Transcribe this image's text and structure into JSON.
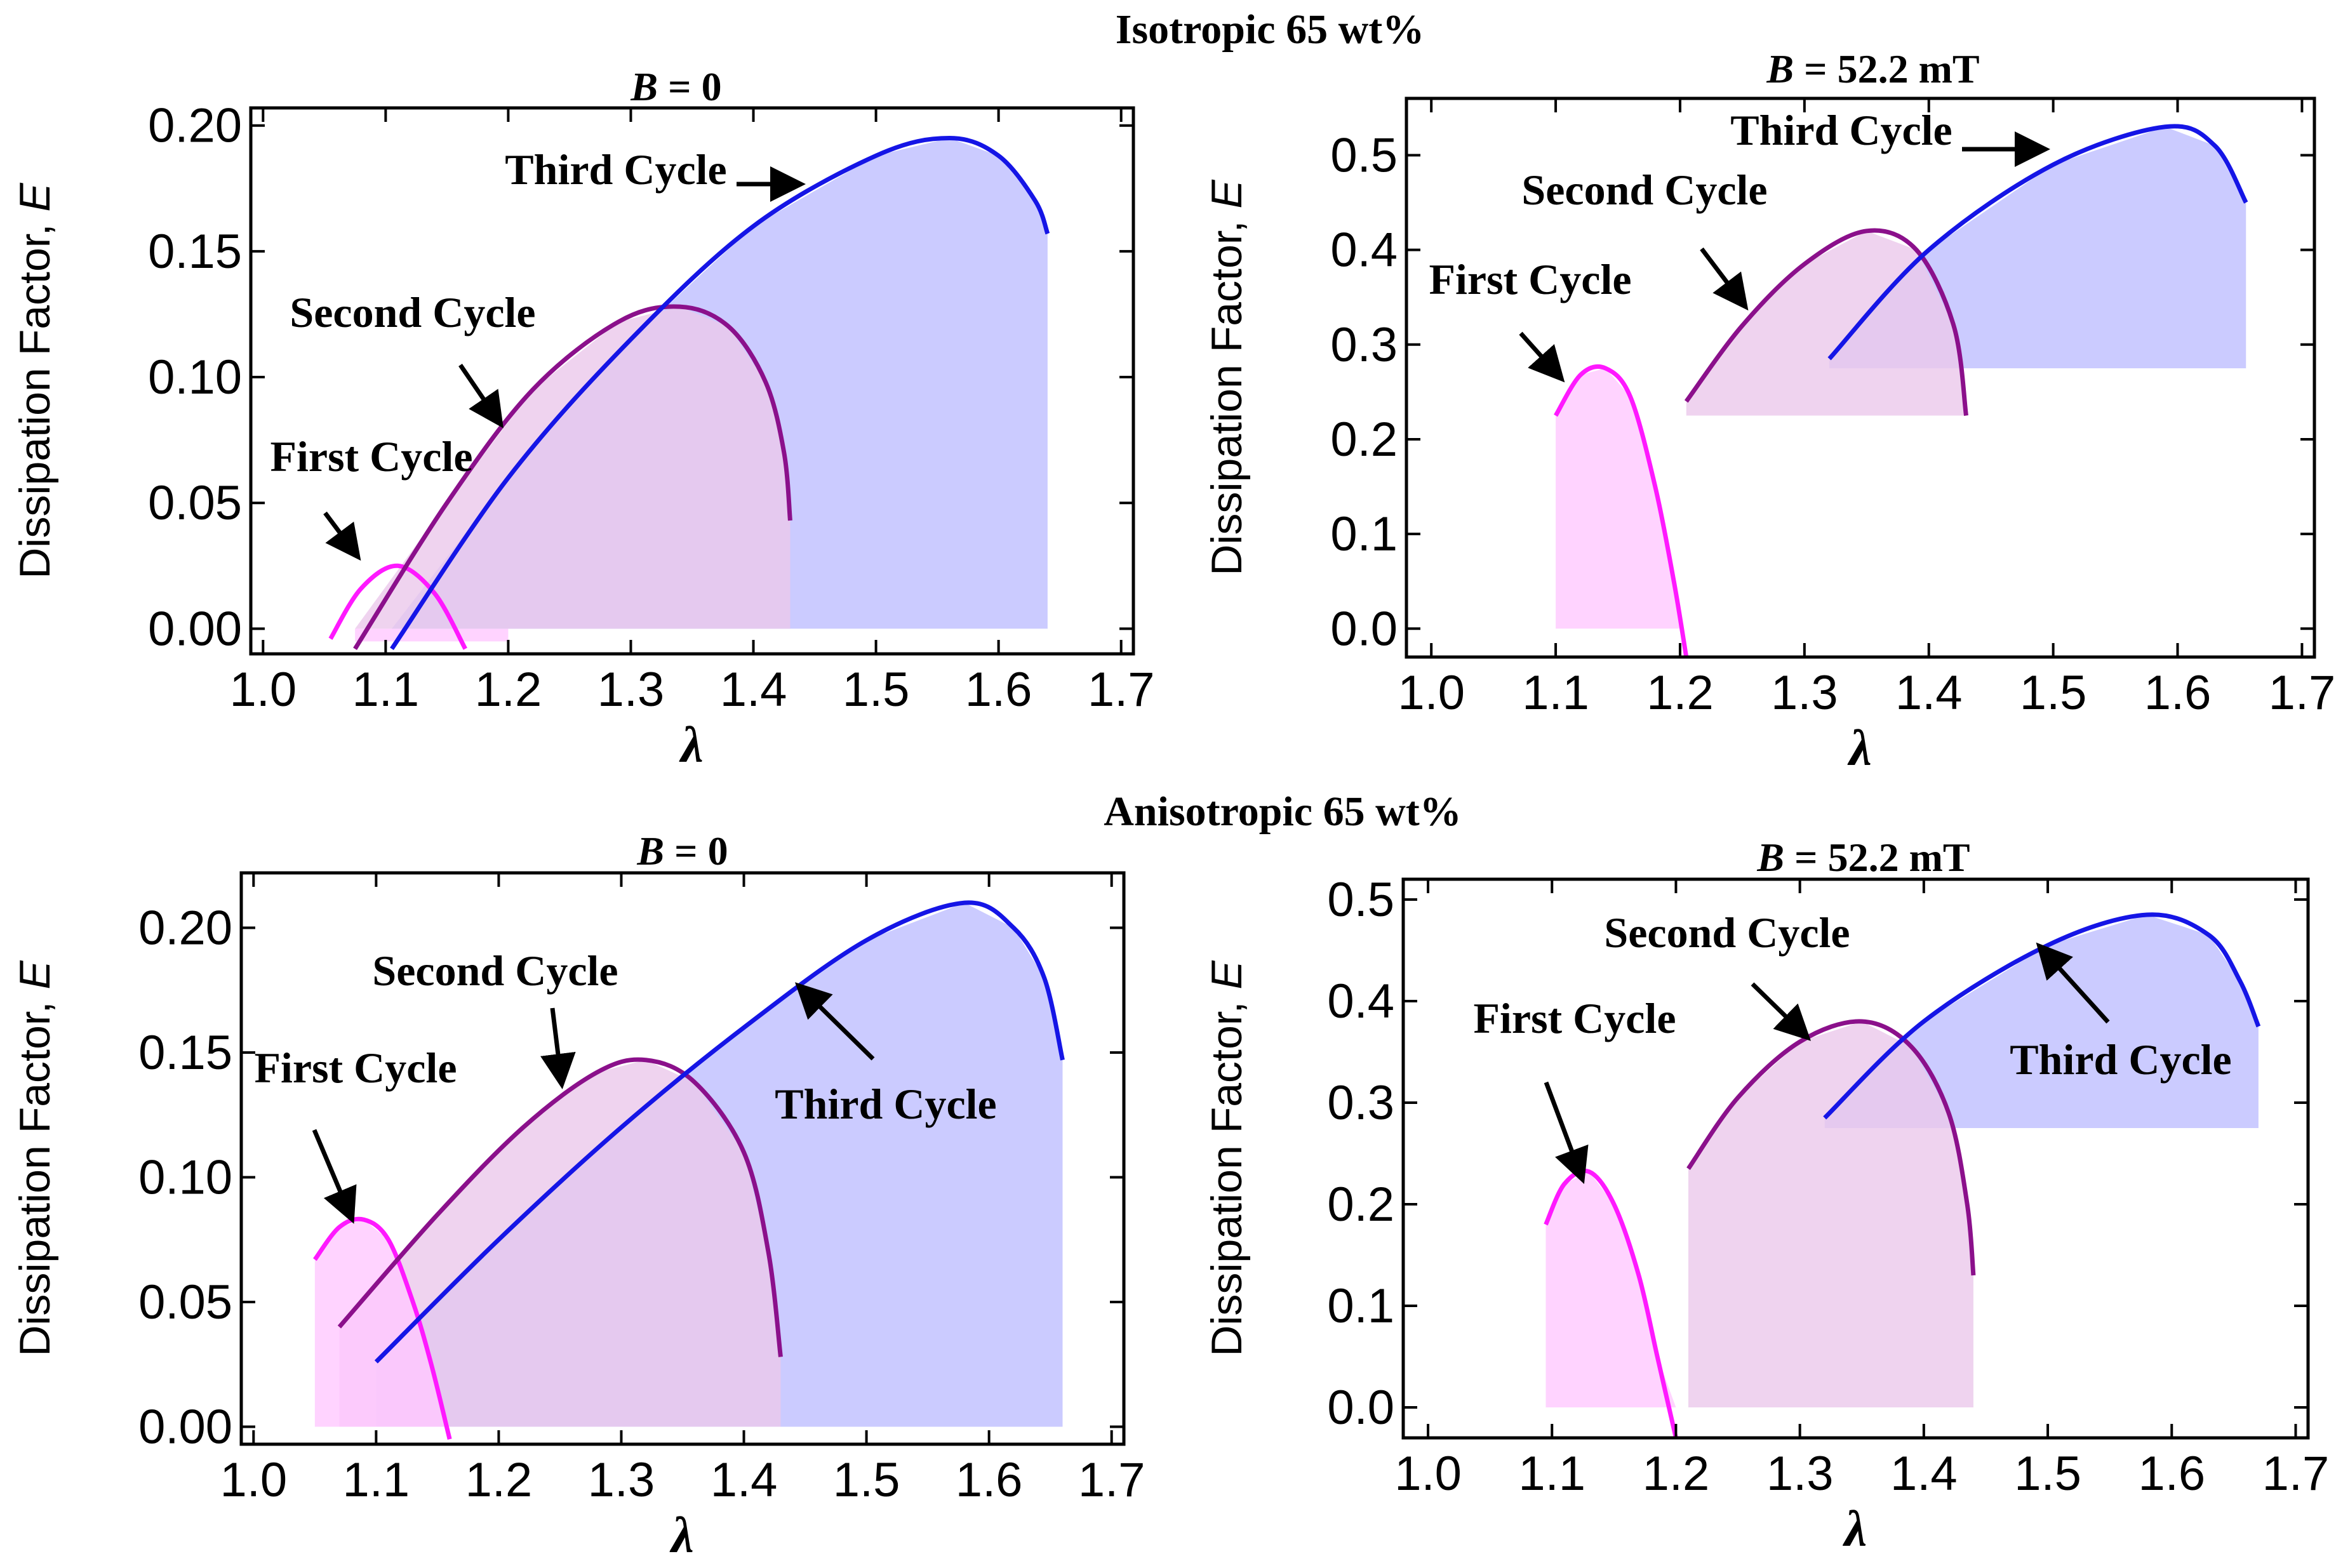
{
  "figure": {
    "row_titles": [
      "Isotropic 65 wt%",
      "Anisotropic 65 wt%"
    ]
  },
  "colors": {
    "first": "#ff19ff",
    "second": "#8b108b",
    "third": "#1515e6",
    "first_fill": "#ffc8ff",
    "second_fill": "#ebc8eb",
    "third_fill": "#c8c8ff",
    "overlap_fill": "#c8a0e6",
    "overlap_fill2": "#ff96ff"
  },
  "chart_data": [
    {
      "id": "iso-b0",
      "type": "area",
      "title_var": "B",
      "title_rest": " = 0",
      "xlabel": "λ",
      "ylabel": "Dissipation Factor, ",
      "ylabel_var": "E",
      "xlim": [
        0.99,
        1.71
      ],
      "ylim": [
        -0.01,
        0.207
      ],
      "xticks": [
        1.0,
        1.1,
        1.2,
        1.3,
        1.4,
        1.5,
        1.6,
        1.7
      ],
      "xtick_labels": [
        "1.0",
        "1.1",
        "1.2",
        "1.3",
        "1.4",
        "1.5",
        "1.6",
        "1.7"
      ],
      "yticks": [
        0.0,
        0.05,
        0.1,
        0.15,
        0.2
      ],
      "ytick_labels": [
        "0.00",
        "0.05",
        "0.10",
        "0.15",
        "0.20"
      ],
      "series": [
        {
          "name": "First Cycle",
          "key": "first",
          "x": [
            1.055,
            1.08,
            1.11,
            1.14,
            1.165
          ],
          "y": [
            -0.004,
            0.016,
            0.025,
            0.014,
            -0.008
          ],
          "fill_x": [
            1.075,
            1.2
          ],
          "fill_base": 0.0,
          "fill_top": [
            0.0,
            0.0
          ]
        },
        {
          "name": "Second Cycle",
          "key": "second",
          "x": [
            1.075,
            1.15,
            1.22,
            1.29,
            1.34,
            1.38,
            1.41,
            1.425,
            1.43
          ],
          "y": [
            -0.008,
            0.05,
            0.095,
            0.122,
            0.128,
            0.12,
            0.098,
            0.07,
            0.043
          ],
          "fill_x": [
            1.075,
            1.43
          ],
          "fill_base": 0.0
        },
        {
          "name": "Third Cycle",
          "key": "third",
          "x": [
            1.105,
            1.2,
            1.3,
            1.4,
            1.5,
            1.56,
            1.6,
            1.63,
            1.64
          ],
          "y": [
            -0.008,
            0.06,
            0.115,
            0.16,
            0.188,
            0.195,
            0.188,
            0.17,
            0.157
          ],
          "fill_x": [
            1.105,
            1.64
          ],
          "fill_base": 0.0
        }
      ],
      "annotations": [
        {
          "text": "Third Cycle",
          "arrow_to": [
            1.44,
            0.18
          ]
        },
        {
          "text": "Second Cycle",
          "arrow_to": [
            1.25,
            0.085
          ]
        },
        {
          "text": "First Cycle",
          "arrow_to": [
            1.085,
            0.025
          ]
        }
      ]
    },
    {
      "id": "iso-b52",
      "type": "area",
      "title_var": "B",
      "title_rest": " = 52.2 mT",
      "xlabel": "λ",
      "ylabel": "Dissipation Factor, ",
      "ylabel_var": "E",
      "xlim": [
        0.98,
        1.71
      ],
      "ylim": [
        -0.03,
        0.56
      ],
      "xticks": [
        1.0,
        1.1,
        1.2,
        1.3,
        1.4,
        1.5,
        1.6,
        1.7
      ],
      "xtick_labels": [
        "1.0",
        "1.1",
        "1.2",
        "1.3",
        "1.4",
        "1.5",
        "1.6",
        "1.7"
      ],
      "yticks": [
        0.0,
        0.1,
        0.2,
        0.3,
        0.4,
        0.5
      ],
      "ytick_labels": [
        "0.0",
        "0.1",
        "0.2",
        "0.3",
        "0.4",
        "0.5"
      ],
      "series": [
        {
          "name": "First Cycle",
          "key": "first",
          "x": [
            1.1,
            1.12,
            1.14,
            1.16,
            1.18,
            1.195,
            1.205
          ],
          "y": [
            0.225,
            0.268,
            0.275,
            0.245,
            0.15,
            0.05,
            -0.03
          ],
          "fill_x": [
            1.1,
            1.2
          ],
          "fill_base": 0.0
        },
        {
          "name": "Second Cycle",
          "key": "second",
          "x": [
            1.205,
            1.25,
            1.3,
            1.35,
            1.39,
            1.42,
            1.43
          ],
          "y": [
            0.24,
            0.32,
            0.385,
            0.42,
            0.4,
            0.32,
            0.225
          ],
          "fill_x": [
            1.205,
            1.43
          ],
          "fill_base": 0.225
        },
        {
          "name": "Third Cycle",
          "key": "third",
          "x": [
            1.32,
            1.4,
            1.5,
            1.59,
            1.63,
            1.655
          ],
          "y": [
            0.285,
            0.4,
            0.49,
            0.53,
            0.51,
            0.45
          ],
          "fill_x": [
            1.32,
            1.655
          ],
          "fill_base": 0.275
        }
      ],
      "annotations": [
        {
          "text": "Third Cycle",
          "arrow_to": [
            1.48,
            0.51
          ]
        },
        {
          "text": "Second Cycle",
          "arrow_to": [
            1.27,
            0.34
          ]
        },
        {
          "text": "First Cycle",
          "arrow_to": [
            1.125,
            0.26
          ]
        }
      ]
    },
    {
      "id": "aniso-b0",
      "type": "area",
      "title_var": "B",
      "title_rest": " = 0",
      "xlabel": "λ",
      "ylabel": "Dissipation Factor, ",
      "ylabel_var": "E",
      "xlim": [
        0.99,
        1.71
      ],
      "ylim": [
        -0.007,
        0.222
      ],
      "xticks": [
        1.0,
        1.1,
        1.2,
        1.3,
        1.4,
        1.5,
        1.6,
        1.7
      ],
      "xtick_labels": [
        "1.0",
        "1.1",
        "1.2",
        "1.3",
        "1.4",
        "1.5",
        "1.6",
        "1.7"
      ],
      "yticks": [
        0.0,
        0.05,
        0.1,
        0.15,
        0.2
      ],
      "ytick_labels": [
        "0.00",
        "0.05",
        "0.10",
        "0.15",
        "0.20"
      ],
      "series": [
        {
          "name": "First Cycle",
          "key": "first",
          "x": [
            1.05,
            1.07,
            1.09,
            1.11,
            1.13,
            1.145,
            1.16
          ],
          "y": [
            0.067,
            0.08,
            0.083,
            0.075,
            0.05,
            0.025,
            -0.005
          ],
          "fill_x": [
            1.05,
            1.16
          ],
          "fill_base": 0.0
        },
        {
          "name": "Second Cycle",
          "key": "second",
          "x": [
            1.07,
            1.15,
            1.22,
            1.28,
            1.32,
            1.36,
            1.4,
            1.42,
            1.43
          ],
          "y": [
            0.04,
            0.085,
            0.12,
            0.142,
            0.147,
            0.138,
            0.11,
            0.07,
            0.028
          ],
          "fill_x": [
            1.07,
            1.43
          ],
          "fill_base": 0.0
        },
        {
          "name": "Third Cycle",
          "key": "third",
          "x": [
            1.1,
            1.2,
            1.3,
            1.4,
            1.5,
            1.58,
            1.62,
            1.645,
            1.66
          ],
          "y": [
            0.026,
            0.075,
            0.12,
            0.16,
            0.195,
            0.21,
            0.2,
            0.18,
            0.147
          ],
          "fill_x": [
            1.1,
            1.66
          ],
          "fill_base": 0.0
        }
      ],
      "annotations": [
        {
          "text": "Second Cycle",
          "arrow_to": [
            1.255,
            0.145
          ]
        },
        {
          "text": "First Cycle",
          "arrow_to": [
            1.085,
            0.09
          ]
        },
        {
          "text": "Third Cycle",
          "arrow_to": [
            1.44,
            0.18
          ]
        }
      ]
    },
    {
      "id": "aniso-b52",
      "type": "area",
      "title_var": "B",
      "title_rest": " = 52.2 mT",
      "xlabel": "λ",
      "ylabel": "Dissipation Factor, ",
      "ylabel_var": "E",
      "xlim": [
        0.98,
        1.71
      ],
      "ylim": [
        -0.03,
        0.52
      ],
      "xticks": [
        1.0,
        1.1,
        1.2,
        1.3,
        1.4,
        1.5,
        1.6,
        1.7
      ],
      "xtick_labels": [
        "1.0",
        "1.1",
        "1.2",
        "1.3",
        "1.4",
        "1.5",
        "1.6",
        "1.7"
      ],
      "yticks": [
        0.0,
        0.1,
        0.2,
        0.3,
        0.4,
        0.5
      ],
      "ytick_labels": [
        "0.0",
        "0.1",
        "0.2",
        "0.3",
        "0.4",
        "0.5"
      ],
      "series": [
        {
          "name": "First Cycle",
          "key": "first",
          "x": [
            1.095,
            1.11,
            1.13,
            1.15,
            1.17,
            1.185,
            1.2
          ],
          "y": [
            0.18,
            0.22,
            0.232,
            0.2,
            0.13,
            0.05,
            -0.03
          ],
          "fill_x": [
            1.095,
            1.21
          ],
          "fill_base": 0.0
        },
        {
          "name": "Second Cycle",
          "key": "second",
          "x": [
            1.21,
            1.25,
            1.3,
            1.35,
            1.39,
            1.42,
            1.435,
            1.44
          ],
          "y": [
            0.235,
            0.305,
            0.36,
            0.38,
            0.355,
            0.29,
            0.2,
            0.13
          ],
          "fill_x": [
            1.21,
            1.44
          ],
          "fill_base": 0.0
        },
        {
          "name": "Third Cycle",
          "key": "third",
          "x": [
            1.32,
            1.4,
            1.5,
            1.58,
            1.63,
            1.655,
            1.67
          ],
          "y": [
            0.285,
            0.38,
            0.455,
            0.485,
            0.465,
            0.42,
            0.375
          ],
          "fill_x": [
            1.32,
            1.67
          ],
          "fill_base": 0.275
        }
      ],
      "annotations": [
        {
          "text": "Second Cycle",
          "arrow_to": [
            1.305,
            0.4
          ]
        },
        {
          "text": "First Cycle",
          "arrow_to": [
            1.13,
            0.25
          ]
        },
        {
          "text": "Third Cycle",
          "arrow_to": [
            1.49,
            0.48
          ]
        }
      ]
    }
  ]
}
